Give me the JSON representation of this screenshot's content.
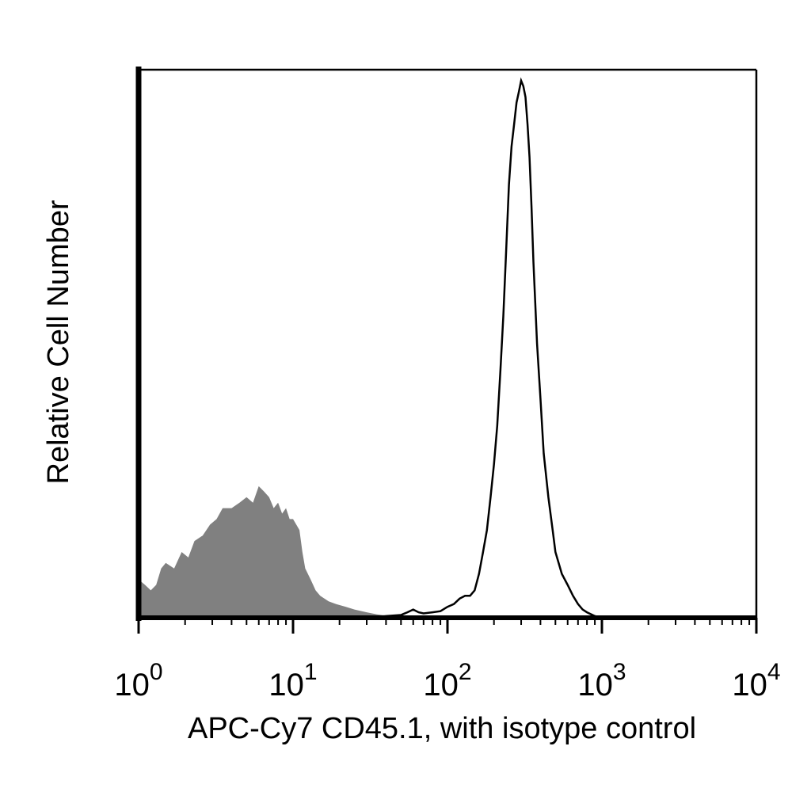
{
  "chart_data": {
    "type": "area",
    "title": "",
    "xlabel": "APC-Cy7 CD45.1, with isotype control",
    "ylabel": "Relative Cell Number",
    "x_scale": "log",
    "xlim": [
      1,
      10000
    ],
    "ylim": [
      0,
      100
    ],
    "grid": false,
    "legend": "none",
    "x_ticks": [
      {
        "base": "10",
        "exp": "0",
        "value": 1
      },
      {
        "base": "10",
        "exp": "1",
        "value": 10
      },
      {
        "base": "10",
        "exp": "2",
        "value": 100
      },
      {
        "base": "10",
        "exp": "3",
        "value": 1000
      },
      {
        "base": "10",
        "exp": "4",
        "value": 10000
      }
    ],
    "series": [
      {
        "style": "filled",
        "color": "#808080",
        "x": [
          1.0,
          1.1,
          1.2,
          1.3,
          1.4,
          1.5,
          1.7,
          1.9,
          2.1,
          2.3,
          2.6,
          2.9,
          3.2,
          3.5,
          4.0,
          4.5,
          5.0,
          5.5,
          6.0,
          6.5,
          7.0,
          7.5,
          8.0,
          8.5,
          9.0,
          9.5,
          10,
          10.5,
          11,
          11.5,
          12,
          13,
          14,
          15,
          17,
          19,
          22,
          25,
          30,
          35,
          40,
          45,
          60,
          80,
          100,
          150,
          200,
          300,
          500,
          1000
        ],
        "y": [
          7,
          6,
          5,
          6,
          9,
          10,
          9,
          12,
          11,
          14,
          15,
          17,
          18,
          20,
          20,
          21,
          22,
          21,
          24,
          23,
          22,
          20,
          21,
          19,
          20,
          18,
          18,
          17,
          16,
          12,
          9,
          7,
          5,
          4,
          3,
          2.5,
          2,
          1.5,
          1,
          0.6,
          0.4,
          0.3,
          0.3,
          0.2,
          0.2,
          0.1,
          0.1,
          0.05,
          0,
          0
        ]
      },
      {
        "style": "line",
        "color": "#000000",
        "x": [
          30,
          40,
          50,
          55,
          60,
          65,
          70,
          80,
          90,
          100,
          110,
          120,
          130,
          140,
          150,
          160,
          170,
          180,
          190,
          200,
          210,
          220,
          230,
          240,
          250,
          260,
          270,
          280,
          290,
          300,
          310,
          320,
          330,
          340,
          350,
          360,
          380,
          400,
          420,
          450,
          480,
          500,
          550,
          600,
          650,
          700,
          750,
          800,
          900,
          1000,
          1500,
          2000,
          5000,
          10000
        ],
        "y": [
          0,
          0.3,
          0.5,
          1,
          1.5,
          1,
          0.8,
          1,
          1.2,
          2,
          2.5,
          3.5,
          4,
          4,
          5,
          8,
          12,
          16,
          22,
          28,
          35,
          45,
          55,
          67,
          79,
          86,
          90,
          94,
          96,
          98,
          97,
          95,
          90,
          84,
          75,
          65,
          50,
          40,
          30,
          22,
          16,
          12,
          8,
          6,
          4,
          2.5,
          1.5,
          1,
          0.3,
          0,
          0,
          0,
          0,
          0
        ]
      }
    ]
  }
}
